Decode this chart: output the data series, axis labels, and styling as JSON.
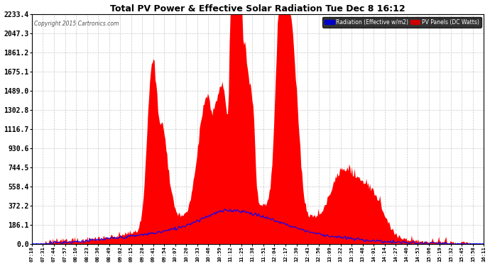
{
  "title": "Total PV Power & Effective Solar Radiation Tue Dec 8 16:12",
  "copyright": "Copyright 2015 Cartronics.com",
  "legend_radiation": "Radiation (Effective w/m2)",
  "legend_pv": "PV Panels (DC Watts)",
  "yticks": [
    0.0,
    186.1,
    372.2,
    558.4,
    744.5,
    930.6,
    1116.7,
    1302.8,
    1489.0,
    1675.1,
    1861.2,
    2047.3,
    2233.4
  ],
  "ymax": 2233.4,
  "ymin": 0.0,
  "bg_color": "#ffffff",
  "plot_bg_color": "#ffffff",
  "grid_color": "#aaaaaa",
  "title_color": "#000000",
  "red_fill_color": "#ff0000",
  "blue_line_color": "#0000ff",
  "xtick_labels": [
    "07:18",
    "07:31",
    "07:44",
    "07:57",
    "08:10",
    "08:23",
    "08:36",
    "08:49",
    "09:02",
    "09:15",
    "09:28",
    "09:41",
    "09:54",
    "10:07",
    "10:20",
    "10:33",
    "10:46",
    "10:59",
    "11:12",
    "11:25",
    "11:38",
    "11:51",
    "12:04",
    "12:17",
    "12:30",
    "12:43",
    "12:56",
    "13:09",
    "13:22",
    "13:35",
    "13:48",
    "14:01",
    "14:14",
    "14:27",
    "14:40",
    "14:53",
    "15:06",
    "15:19",
    "15:32",
    "15:45",
    "15:58",
    "16:11"
  ]
}
